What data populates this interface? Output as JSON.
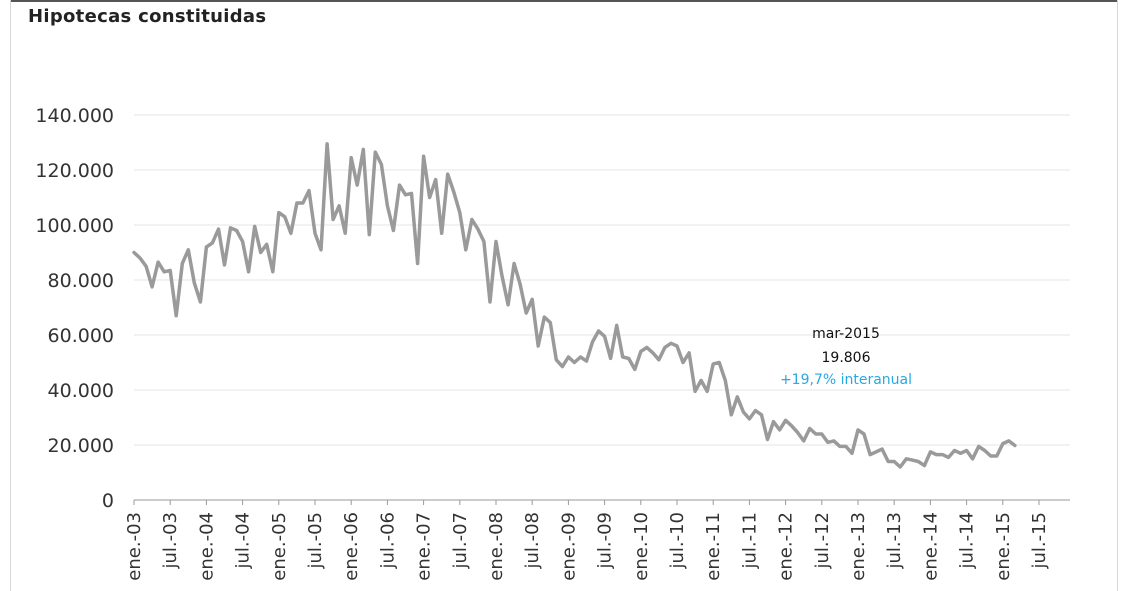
{
  "title": "Hipotecas constituidas",
  "chart_data": {
    "type": "line",
    "title": "Hipotecas constituidas",
    "xlabel": "",
    "ylabel": "",
    "ylim": [
      0,
      140000
    ],
    "x_range": [
      "2003-01",
      "2015-07"
    ],
    "grid": true,
    "yticks": [
      {
        "value": 0,
        "label": "0"
      },
      {
        "value": 20000,
        "label": "20.000"
      },
      {
        "value": 40000,
        "label": "40.000"
      },
      {
        "value": 60000,
        "label": "60.000"
      },
      {
        "value": 80000,
        "label": "80.000"
      },
      {
        "value": 100000,
        "label": "100.000"
      },
      {
        "value": 120000,
        "label": "120.000"
      },
      {
        "value": 140000,
        "label": "140.000"
      }
    ],
    "xticks": [
      {
        "date": "2003-01",
        "label": "ene.-03"
      },
      {
        "date": "2003-07",
        "label": "jul.-03"
      },
      {
        "date": "2004-01",
        "label": "ene.-04"
      },
      {
        "date": "2004-07",
        "label": "jul.-04"
      },
      {
        "date": "2005-01",
        "label": "ene.-05"
      },
      {
        "date": "2005-07",
        "label": "jul.-05"
      },
      {
        "date": "2006-01",
        "label": "ene.-06"
      },
      {
        "date": "2006-07",
        "label": "jul.-06"
      },
      {
        "date": "2007-01",
        "label": "ene.-07"
      },
      {
        "date": "2007-07",
        "label": "jul.-07"
      },
      {
        "date": "2008-01",
        "label": "ene.-08"
      },
      {
        "date": "2008-07",
        "label": "jul.-08"
      },
      {
        "date": "2009-01",
        "label": "ene.-09"
      },
      {
        "date": "2009-07",
        "label": "jul.-09"
      },
      {
        "date": "2010-01",
        "label": "ene.-10"
      },
      {
        "date": "2010-07",
        "label": "jul.-10"
      },
      {
        "date": "2011-01",
        "label": "ene.-11"
      },
      {
        "date": "2011-07",
        "label": "jul.-11"
      },
      {
        "date": "2012-01",
        "label": "ene.-12"
      },
      {
        "date": "2012-07",
        "label": "jul.-12"
      },
      {
        "date": "2013-01",
        "label": "ene.-13"
      },
      {
        "date": "2013-07",
        "label": "jul.-13"
      },
      {
        "date": "2014-01",
        "label": "ene.-14"
      },
      {
        "date": "2014-07",
        "label": "jul.-14"
      },
      {
        "date": "2015-01",
        "label": "ene.-15"
      },
      {
        "date": "2015-07",
        "label": "jul.-15"
      }
    ],
    "series": [
      {
        "color": "#9a9a9a",
        "start": "2003-01",
        "values": [
          90000,
          88000,
          85000,
          77500,
          86500,
          83000,
          83500,
          67000,
          86000,
          91000,
          79000,
          72000,
          92000,
          93500,
          98500,
          85500,
          99000,
          98000,
          94000,
          83000,
          99500,
          90000,
          93000,
          83000,
          104500,
          103000,
          97000,
          108000,
          108000,
          112500,
          97000,
          91000,
          129500,
          102000,
          107000,
          97000,
          124500,
          114500,
          127500,
          96500,
          126500,
          122000,
          107000,
          98000,
          114500,
          111000,
          111500,
          86000,
          125000,
          110000,
          116500,
          97000,
          118500,
          112000,
          104500,
          91000,
          102000,
          98500,
          94000,
          72000,
          94000,
          81500,
          71000,
          86000,
          78500,
          68000,
          73000,
          56000,
          66500,
          64500,
          51000,
          48500,
          52000,
          50000,
          52000,
          50500,
          57500,
          61500,
          59500,
          51500,
          63500,
          52000,
          51500,
          47500,
          54000,
          55500,
          53500,
          51000,
          55500,
          57000,
          56000,
          50000,
          53500,
          39500,
          43500,
          39500,
          49500,
          50000,
          43500,
          31000,
          37500,
          32000,
          29500,
          32500,
          31000,
          22000,
          28500,
          25500,
          29000,
          27000,
          24500,
          21500,
          26000,
          24000,
          24000,
          21000,
          21500,
          19500,
          19500,
          17000,
          25500,
          24000,
          16500,
          17500,
          18500,
          14000,
          14000,
          12000,
          15000,
          14500,
          14000,
          12500,
          17500,
          16500,
          16500,
          15500,
          18000,
          17000,
          18000,
          15000,
          19500,
          18000,
          16000,
          16000,
          20500,
          21500,
          19806
        ]
      }
    ],
    "annotations": [
      {
        "text": "mar-2015",
        "color": "#111111"
      },
      {
        "text": "19.806",
        "color": "#111111"
      },
      {
        "text": "+19,7% interanual",
        "color": "#29a9e0"
      }
    ]
  }
}
